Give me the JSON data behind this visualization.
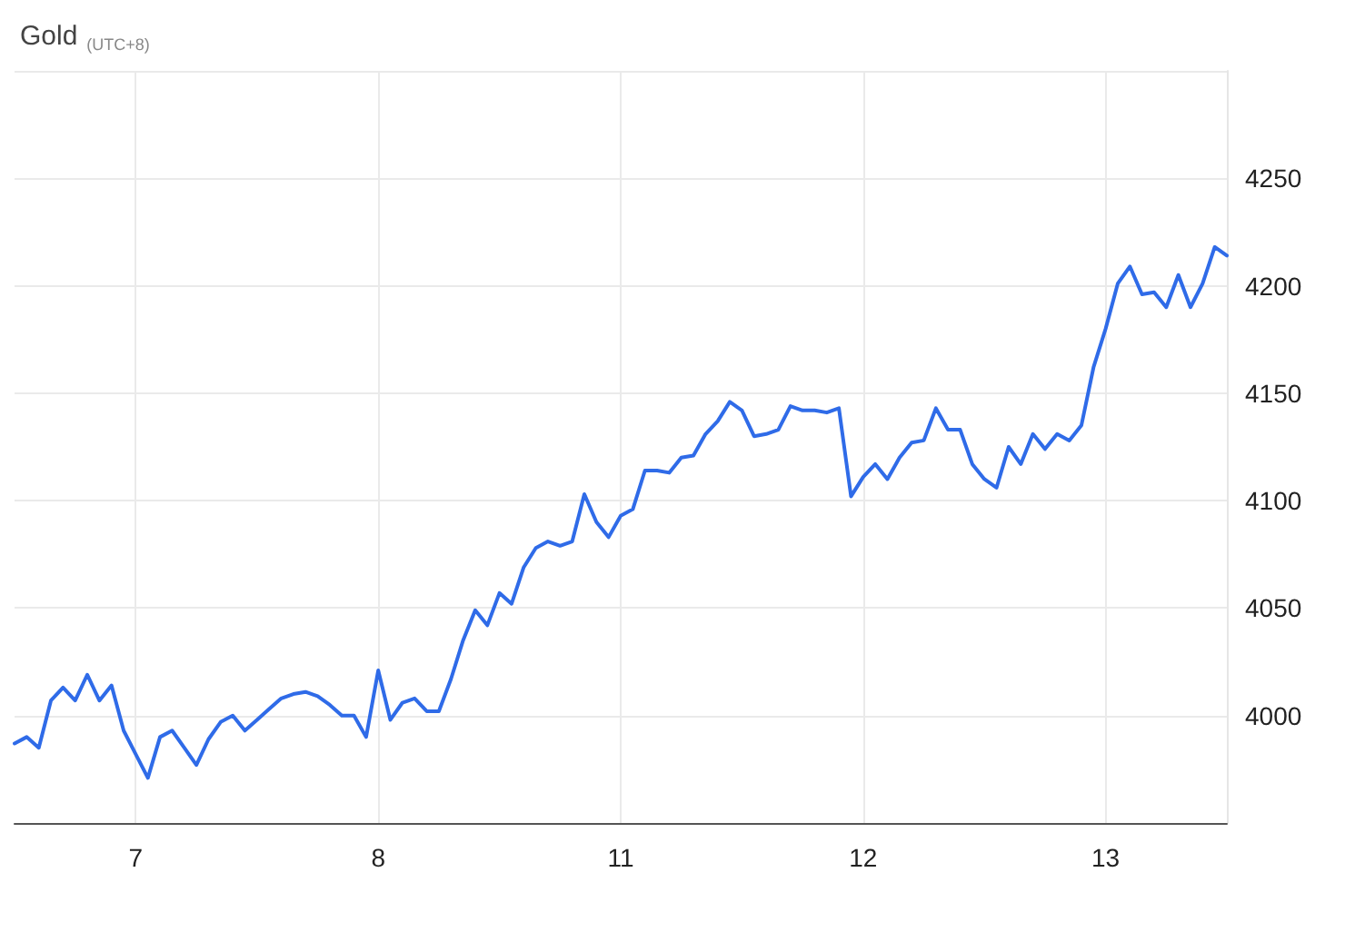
{
  "chart_data": {
    "type": "line",
    "title": "Gold",
    "subtitle": "(UTC+8)",
    "categories": [
      null,
      null,
      null,
      null,
      null,
      null,
      null,
      null,
      null,
      null,
      "7",
      null,
      null,
      null,
      null,
      null,
      null,
      null,
      null,
      null,
      null,
      null,
      null,
      null,
      null,
      null,
      null,
      null,
      null,
      null,
      "8",
      null,
      null,
      null,
      null,
      null,
      null,
      null,
      null,
      null,
      null,
      null,
      null,
      null,
      null,
      null,
      null,
      null,
      null,
      null,
      "11",
      null,
      null,
      null,
      null,
      null,
      null,
      null,
      null,
      null,
      null,
      null,
      null,
      null,
      null,
      null,
      null,
      null,
      null,
      null,
      "12",
      null,
      null,
      null,
      null,
      null,
      null,
      null,
      null,
      null,
      null,
      null,
      null,
      null,
      null,
      null,
      null,
      null,
      null,
      null,
      "13",
      null,
      null,
      null,
      null,
      null,
      null,
      null,
      null,
      null,
      null
    ],
    "ylim": [
      3950,
      4300
    ],
    "yticks": [
      4000,
      4050,
      4100,
      4150,
      4200,
      4250,
      {
        "value": 4300,
        "label": null
      }
    ],
    "grid": true,
    "marker": "none",
    "line_style": "solid",
    "series": [
      {
        "color": "#2f6be8",
        "values": [
          3987,
          3990,
          3985,
          4007,
          4013,
          4007,
          4019,
          4007,
          4014,
          3993,
          3982,
          3971,
          3990,
          3993,
          3985,
          3977,
          3989,
          3997,
          4000,
          3993,
          3998,
          4003,
          4008,
          4010,
          4011,
          4009,
          4005,
          4000,
          4000,
          3990,
          4021,
          3998,
          4006,
          4008,
          4002,
          4002,
          4017,
          4035,
          4049,
          4042,
          4057,
          4052,
          4069,
          4078,
          4081,
          4079,
          4081,
          4103,
          4090,
          4083,
          4093,
          4096,
          4114,
          4114,
          4113,
          4120,
          4121,
          4131,
          4137,
          4146,
          4142,
          4130,
          4131,
          4133,
          4144,
          4142,
          4142,
          4141,
          4143,
          4102,
          4111,
          4117,
          4110,
          4120,
          4127,
          4128,
          4143,
          4133,
          4133,
          4117,
          4110,
          4106,
          4125,
          4117,
          4131,
          4124,
          4131,
          4128,
          4135,
          4162,
          4180,
          4201,
          4209,
          4196,
          4197,
          4190,
          4205,
          4190,
          4201,
          4218,
          4214
        ]
      }
    ]
  }
}
